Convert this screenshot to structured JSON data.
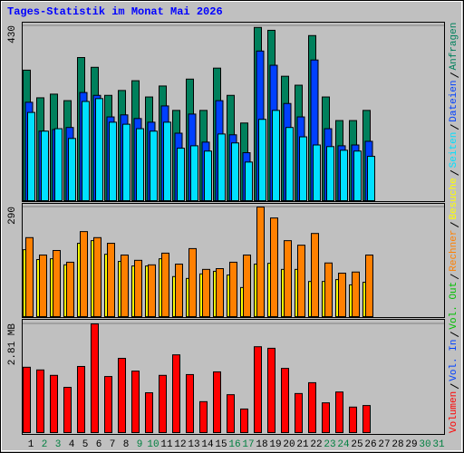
{
  "chart_data": [
    {
      "type": "bar",
      "title": "Tages-Statistik im Monat Mai 2026",
      "categories": [
        "1",
        "2",
        "3",
        "4",
        "5",
        "6",
        "7",
        "8",
        "9",
        "10",
        "11",
        "12",
        "13",
        "14",
        "15",
        "16",
        "17",
        "18",
        "19",
        "20",
        "21",
        "22",
        "23",
        "24",
        "25",
        "26",
        "27",
        "28",
        "29",
        "30",
        "31"
      ],
      "category_colors": [
        "#000000",
        "#008040",
        "#008040",
        "#000000",
        "#000000",
        "#000000",
        "#000000",
        "#000000",
        "#008040",
        "#008040",
        "#000000",
        "#000000",
        "#000000",
        "#000000",
        "#000000",
        "#008040",
        "#008040",
        "#000000",
        "#000000",
        "#000000",
        "#000000",
        "#000000",
        "#008040",
        "#008040",
        "#000000",
        "#000000",
        "#000000",
        "#000000",
        "#000000",
        "#008040",
        "#008040"
      ],
      "ylim": [
        0,
        430
      ],
      "yticks": [
        430
      ],
      "series": [
        {
          "name": "Anfragen",
          "color": "#00805c",
          "values": [
            321,
            253,
            262,
            246,
            352,
            328,
            259,
            271,
            295,
            255,
            282,
            222,
            299,
            222,
            326,
            259,
            191,
            426,
            419,
            306,
            284,
            406,
            255,
            197,
            197,
            222,
            null,
            null,
            null,
            null,
            null
          ]
        },
        {
          "name": "Dateien",
          "color": "#0040ff",
          "values": [
            242,
            171,
            175,
            180,
            266,
            259,
            206,
            211,
            202,
            193,
            233,
            166,
            213,
            144,
            246,
            162,
            118,
            368,
            333,
            239,
            206,
            346,
            177,
            135,
            137,
            146,
            null,
            null,
            null,
            null,
            null
          ]
        },
        {
          "name": "Seiten",
          "color": "#00e0ff",
          "values": [
            217,
            171,
            177,
            153,
            244,
            251,
            193,
            188,
            177,
            171,
            193,
            129,
            135,
            122,
            164,
            142,
            95,
            200,
            222,
            180,
            157,
            137,
            133,
            124,
            122,
            109,
            null,
            null,
            null,
            null,
            null
          ]
        }
      ]
    },
    {
      "type": "bar",
      "ylim": [
        0,
        290
      ],
      "yticks": [
        290
      ],
      "series": [
        {
          "name": "Besuche",
          "color": "#ffff00",
          "values": [
            177,
            151,
            153,
            137,
            194,
            201,
            165,
            146,
            134,
            134,
            153,
            106,
            101,
            113,
            120,
            110,
            77,
            139,
            141,
            125,
            125,
            93,
            93,
            98,
            84,
            91,
            null,
            null,
            null,
            null,
            null
          ]
        },
        {
          "name": "Rechner",
          "color": "#ff8000",
          "values": [
            209,
            163,
            175,
            144,
            225,
            209,
            194,
            163,
            149,
            137,
            168,
            139,
            180,
            125,
            127,
            144,
            163,
            290,
            261,
            201,
            189,
            220,
            142,
            115,
            118,
            163,
            null,
            null,
            null,
            null,
            null
          ]
        }
      ]
    },
    {
      "type": "bar",
      "ylim": [
        0,
        2.81
      ],
      "yticks": [
        {
          "value": 2.81,
          "label": "2.81 MB"
        }
      ],
      "series": [
        {
          "name": "Volumen",
          "color": "#ff0000",
          "values": [
            1.69,
            1.62,
            1.48,
            1.17,
            1.71,
            2.81,
            1.45,
            1.92,
            1.59,
            1.03,
            1.48,
            2.01,
            1.5,
            0.8,
            1.57,
            0.98,
            0.61,
            2.22,
            2.18,
            1.66,
            1.01,
            1.29,
            0.77,
            1.05,
            0.66,
            0.7,
            null,
            null,
            null,
            null,
            null
          ]
        },
        {
          "name": "Vol. In",
          "color": "#0040ff",
          "values": [
            null,
            null,
            null,
            null,
            null,
            null,
            null,
            null,
            null,
            null,
            null,
            null,
            null,
            null,
            null,
            null,
            null,
            null,
            null,
            null,
            null,
            null,
            null,
            null,
            null,
            null,
            null,
            null,
            null,
            null,
            null
          ]
        },
        {
          "name": "Vol. Out",
          "color": "#00c000",
          "values": [
            null,
            null,
            null,
            null,
            null,
            null,
            null,
            null,
            null,
            null,
            null,
            null,
            null,
            null,
            null,
            null,
            null,
            null,
            null,
            null,
            null,
            null,
            null,
            null,
            null,
            null,
            null,
            null,
            null,
            null,
            null
          ]
        }
      ]
    }
  ]
}
